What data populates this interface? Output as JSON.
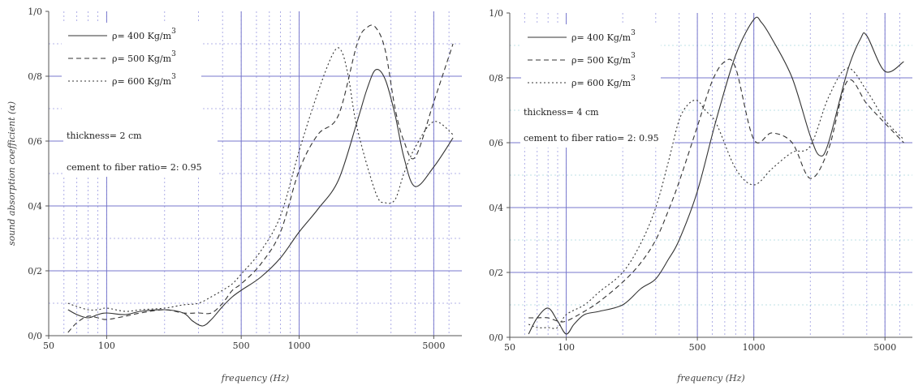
{
  "colors": {
    "major_grid": "#7777cc",
    "minor_grid": "#9a9ae0",
    "minor_grid_alt": "#a8d8dc",
    "series_line": "#333333",
    "axis": "#555555"
  },
  "chart_data": [
    {
      "type": "line",
      "x_scale": "log",
      "xlim": [
        50,
        7000
      ],
      "ylim": [
        0,
        1
      ],
      "xlabel": "frequency (Hz)",
      "ylabel": "sound absorption coefficient (α)",
      "x_ticks": [
        {
          "value": 50,
          "label": "50"
        },
        {
          "value": 100,
          "label": "100"
        },
        {
          "value": 500,
          "label": "500"
        },
        {
          "value": 1000,
          "label": "1000"
        },
        {
          "value": 5000,
          "label": "5000"
        }
      ],
      "y_ticks": [
        {
          "value": 0,
          "label": "0/0"
        },
        {
          "value": 0.2,
          "label": "0/2"
        },
        {
          "value": 0.4,
          "label": "0/4"
        },
        {
          "value": 0.6,
          "label": "0/6"
        },
        {
          "value": 0.8,
          "label": "0/8"
        },
        {
          "value": 1.0,
          "label": "1/0"
        }
      ],
      "legend": [
        {
          "text": "ρ= 400 Kg/m",
          "sup": "3",
          "dash": "solid"
        },
        {
          "text": "ρ= 500 Kg/m",
          "sup": "3",
          "dash": "dashed"
        },
        {
          "text": "ρ= 600 Kg/m",
          "sup": "3",
          "dash": "dotted"
        }
      ],
      "annotations": [
        "thickness= 2 cm",
        "cement to fiber ratio= 2: 0.95"
      ],
      "series": [
        {
          "dash": "solid",
          "x": [
            63,
            70,
            80,
            90,
            100,
            125,
            150,
            200,
            250,
            280,
            315,
            350,
            400,
            450,
            500,
            630,
            800,
            1000,
            1250,
            1600,
            2000,
            2250,
            2500,
            2800,
            3150,
            3500,
            4000,
            5000,
            6300
          ],
          "y": [
            0.08,
            0.065,
            0.055,
            0.065,
            0.07,
            0.065,
            0.075,
            0.08,
            0.07,
            0.045,
            0.03,
            0.05,
            0.09,
            0.12,
            0.14,
            0.18,
            0.24,
            0.32,
            0.39,
            0.48,
            0.66,
            0.76,
            0.82,
            0.79,
            0.68,
            0.55,
            0.46,
            0.52,
            0.61
          ]
        },
        {
          "dash": "dashed",
          "x": [
            63,
            70,
            80,
            90,
            100,
            125,
            150,
            200,
            250,
            300,
            350,
            400,
            450,
            500,
            630,
            800,
            1000,
            1250,
            1600,
            2000,
            2250,
            2500,
            2800,
            3150,
            3500,
            4000,
            5000,
            6300
          ],
          "y": [
            0.01,
            0.04,
            0.06,
            0.055,
            0.05,
            0.06,
            0.07,
            0.08,
            0.07,
            0.07,
            0.07,
            0.1,
            0.14,
            0.16,
            0.22,
            0.32,
            0.51,
            0.62,
            0.68,
            0.9,
            0.95,
            0.95,
            0.88,
            0.7,
            0.6,
            0.55,
            0.72,
            0.9
          ]
        },
        {
          "dash": "dotted",
          "x": [
            63,
            70,
            80,
            90,
            100,
            125,
            150,
            200,
            250,
            300,
            350,
            400,
            450,
            500,
            630,
            800,
            1000,
            1250,
            1500,
            1650,
            1800,
            2000,
            2500,
            2800,
            3150,
            3500,
            4000,
            5000,
            6300
          ],
          "y": [
            0.1,
            0.09,
            0.08,
            0.08,
            0.085,
            0.075,
            0.08,
            0.085,
            0.095,
            0.1,
            0.12,
            0.14,
            0.16,
            0.19,
            0.26,
            0.37,
            0.57,
            0.75,
            0.87,
            0.88,
            0.8,
            0.64,
            0.44,
            0.41,
            0.42,
            0.5,
            0.58,
            0.66,
            0.62
          ]
        }
      ]
    },
    {
      "type": "line",
      "x_scale": "log",
      "xlim": [
        50,
        7000
      ],
      "ylim": [
        0,
        1
      ],
      "xlabel": "frequency (Hz)",
      "ylabel": "",
      "x_ticks": [
        {
          "value": 50,
          "label": "50"
        },
        {
          "value": 100,
          "label": "100"
        },
        {
          "value": 500,
          "label": "500"
        },
        {
          "value": 1000,
          "label": "1000"
        },
        {
          "value": 5000,
          "label": "5000"
        }
      ],
      "y_ticks": [
        {
          "value": 0,
          "label": "0/0"
        },
        {
          "value": 0.2,
          "label": "0/2"
        },
        {
          "value": 0.4,
          "label": "0/4"
        },
        {
          "value": 0.6,
          "label": "0/6"
        },
        {
          "value": 0.8,
          "label": "0/8"
        },
        {
          "value": 1.0,
          "label": "1/0"
        }
      ],
      "legend": [
        {
          "text": "ρ= 400 Kg/m",
          "sup": "3",
          "dash": "solid"
        },
        {
          "text": "ρ= 500 Kg/m",
          "sup": "3",
          "dash": "dashed"
        },
        {
          "text": "ρ= 600 Kg/m",
          "sup": "3",
          "dash": "dotted"
        }
      ],
      "annotations": [
        "thickness= 4 cm",
        "cement to fiber ratio= 2: 0.95"
      ],
      "series": [
        {
          "dash": "solid",
          "x": [
            63,
            70,
            80,
            90,
            100,
            110,
            125,
            150,
            200,
            250,
            300,
            350,
            400,
            500,
            630,
            800,
            1000,
            1100,
            1250,
            1600,
            2000,
            2250,
            2500,
            3150,
            3700,
            4000,
            5000,
            6300
          ],
          "y": [
            0.01,
            0.06,
            0.09,
            0.05,
            0.01,
            0.04,
            0.07,
            0.08,
            0.1,
            0.15,
            0.18,
            0.24,
            0.3,
            0.45,
            0.67,
            0.87,
            0.98,
            0.97,
            0.92,
            0.8,
            0.62,
            0.56,
            0.6,
            0.82,
            0.92,
            0.93,
            0.82,
            0.85
          ]
        },
        {
          "dash": "dashed",
          "x": [
            63,
            70,
            80,
            90,
            100,
            125,
            150,
            200,
            250,
            300,
            350,
            400,
            500,
            600,
            700,
            800,
            1000,
            1250,
            1600,
            2000,
            2500,
            3150,
            4000,
            5000,
            6300
          ],
          "y": [
            0.06,
            0.06,
            0.06,
            0.05,
            0.05,
            0.08,
            0.11,
            0.17,
            0.23,
            0.3,
            0.39,
            0.48,
            0.65,
            0.79,
            0.85,
            0.83,
            0.61,
            0.63,
            0.6,
            0.49,
            0.58,
            0.79,
            0.72,
            0.66,
            0.6
          ]
        },
        {
          "dash": "dotted",
          "x": [
            63,
            70,
            80,
            90,
            100,
            125,
            150,
            200,
            250,
            300,
            350,
            400,
            450,
            500,
            550,
            630,
            800,
            1000,
            1250,
            1600,
            2000,
            2500,
            3150,
            4000,
            5000,
            6300
          ],
          "y": [
            0.04,
            0.03,
            0.03,
            0.03,
            0.07,
            0.1,
            0.14,
            0.2,
            0.29,
            0.4,
            0.54,
            0.67,
            0.72,
            0.73,
            0.7,
            0.66,
            0.52,
            0.47,
            0.52,
            0.57,
            0.59,
            0.74,
            0.83,
            0.76,
            0.67,
            0.61
          ]
        }
      ]
    }
  ]
}
